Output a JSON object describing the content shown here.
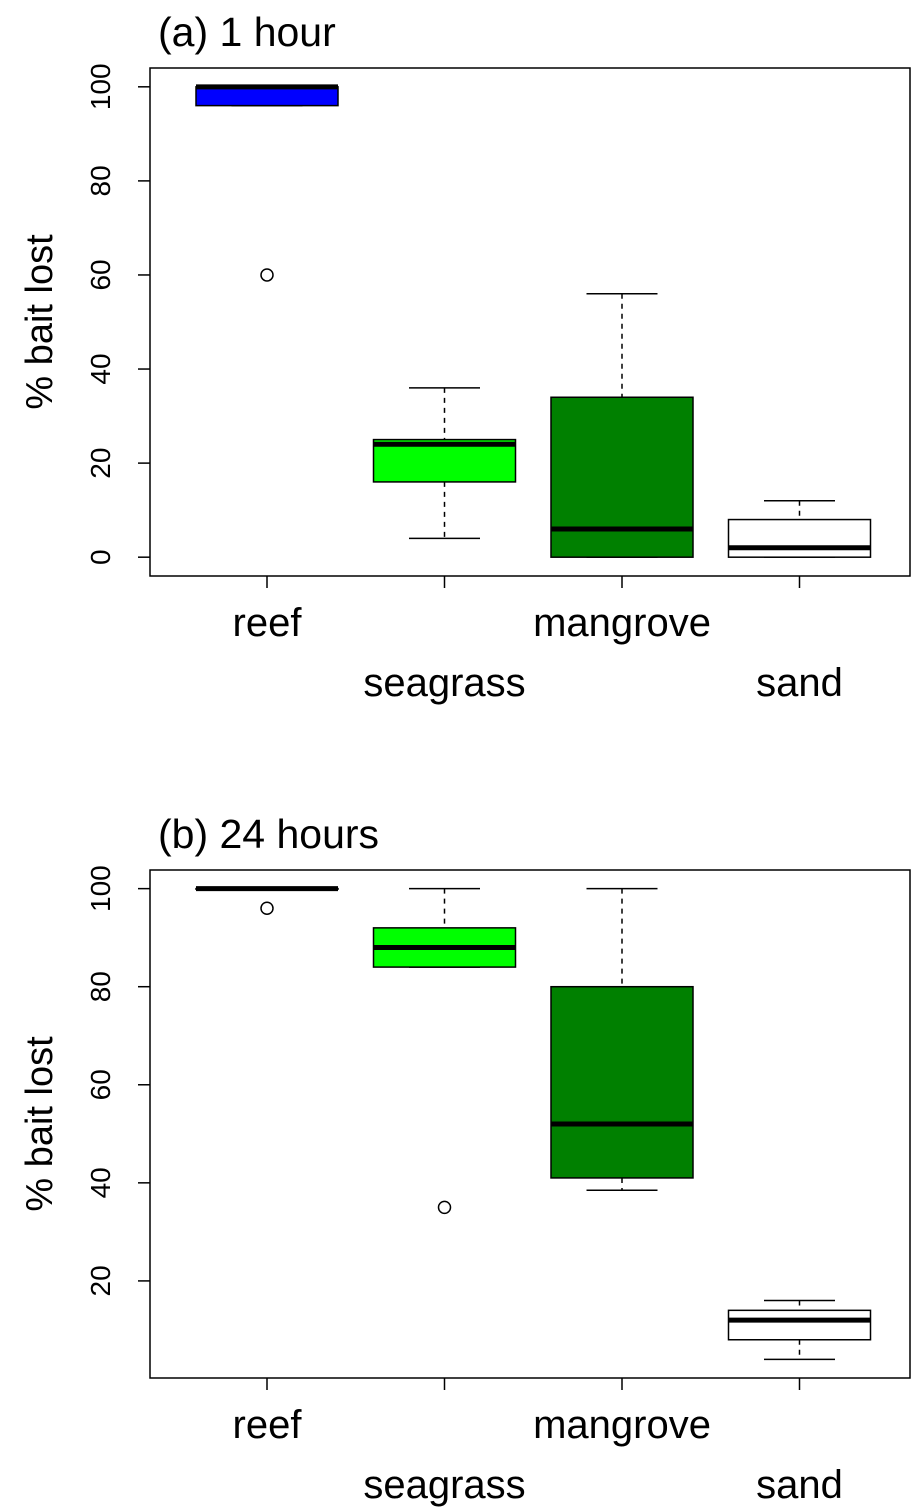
{
  "chart_data": [
    {
      "type": "box",
      "title": "(a) 1 hour",
      "y_label": "% bait lost",
      "categories": [
        "reef",
        "seagrass",
        "mangrove",
        "sand"
      ],
      "colors": [
        "#0000ff",
        "#00ff00",
        "#008000",
        "#ffffff"
      ],
      "stats": [
        {
          "low": 96,
          "q1": 96,
          "median": 100,
          "q3": 100,
          "high": 100,
          "outliers": [
            60
          ]
        },
        {
          "low": 4,
          "q1": 16,
          "median": 24,
          "q3": 25,
          "high": 36,
          "outliers": []
        },
        {
          "low": 0,
          "q1": 0,
          "median": 6,
          "q3": 34,
          "high": 56,
          "outliers": []
        },
        {
          "low": 0,
          "q1": 0,
          "median": 2,
          "q3": 8,
          "high": 12,
          "outliers": []
        }
      ],
      "ylim": [
        -4,
        104
      ],
      "yticks": [
        0,
        20,
        40,
        60,
        80,
        100
      ]
    },
    {
      "type": "box",
      "title": "(b) 24 hours",
      "y_label": "% bait lost",
      "categories": [
        "reef",
        "seagrass",
        "mangrove",
        "sand"
      ],
      "colors": [
        "#0000ff",
        "#00ff00",
        "#008000",
        "#ffffff"
      ],
      "stats": [
        {
          "low": 100,
          "q1": 100,
          "median": 100,
          "q3": 100,
          "high": 100,
          "outliers": [
            96
          ]
        },
        {
          "low": 84,
          "q1": 84,
          "median": 88,
          "q3": 92,
          "high": 100,
          "outliers": [
            35
          ]
        },
        {
          "low": 38.5,
          "q1": 41,
          "median": 52,
          "q3": 80,
          "high": 100,
          "outliers": []
        },
        {
          "low": 4,
          "q1": 8,
          "median": 12,
          "q3": 14,
          "high": 16,
          "outliers": []
        }
      ],
      "ylim": [
        0.2,
        103.8
      ],
      "yticks": [
        20,
        40,
        60,
        80,
        100
      ]
    }
  ]
}
